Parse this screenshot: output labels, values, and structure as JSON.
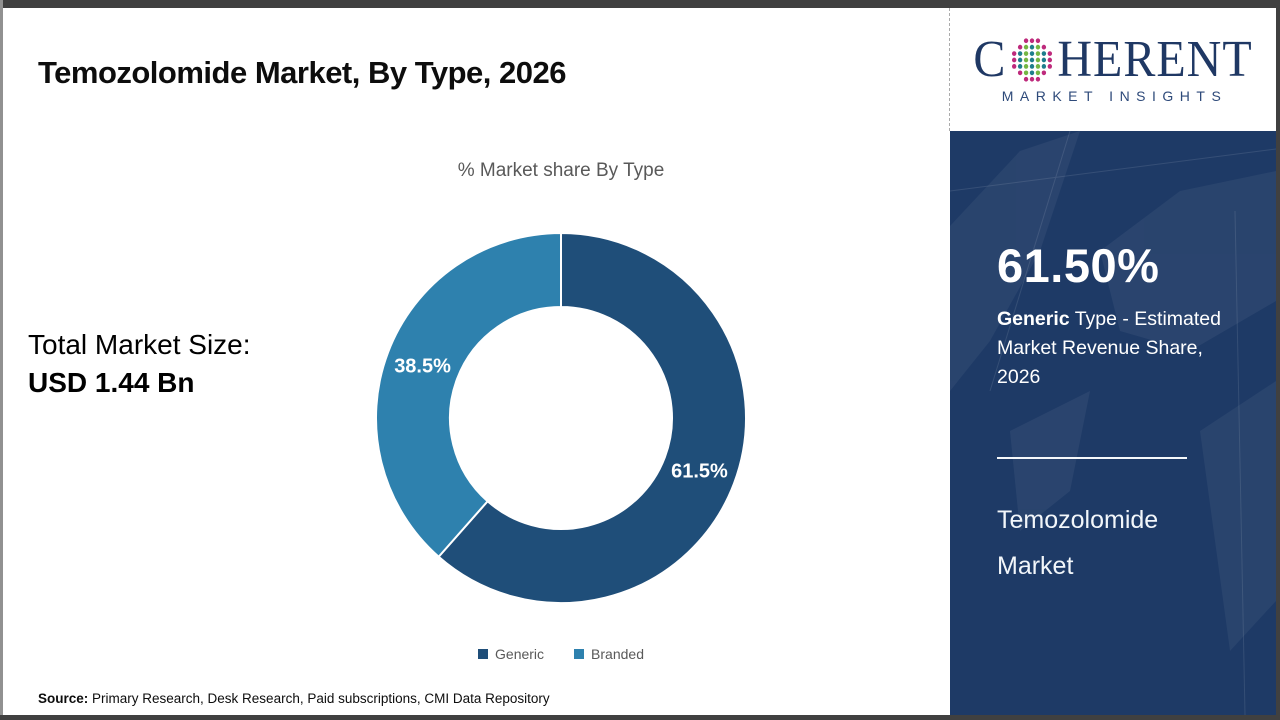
{
  "page": {
    "title": "Temozolomide Market, By Type, 2026",
    "source_label": "Source:",
    "source_text": " Primary Research, Desk Research, Paid subscriptions, CMI Data Repository"
  },
  "stats": {
    "label": "Total Market Size:",
    "value": "USD 1.44 Bn"
  },
  "chart_data": {
    "type": "pie",
    "subtype": "donut",
    "title": "% Market share By Type",
    "categories": [
      "Generic",
      "Branded"
    ],
    "values": [
      61.5,
      38.5
    ],
    "labels": [
      "61.5%",
      "38.5%"
    ],
    "colors": [
      "#1F4E79",
      "#2E81AE"
    ],
    "start_angle_deg": 0,
    "direction": "clockwise",
    "legend_position": "bottom",
    "inner_radius_ratio": 0.6,
    "slice_label_color": "#ffffff"
  },
  "sidebar": {
    "logo": {
      "word_start": "C",
      "word_end": "HERENT",
      "subtitle": "MARKET INSIGHTS",
      "globe_teal": "#1E7D8C",
      "globe_green": "#74B643",
      "globe_magenta": "#BE2A7C"
    },
    "stat": {
      "value": "61.50%",
      "desc_bold": "Generic",
      "desc_rest": " Type - Estimated Market Revenue Share, 2026"
    },
    "market_name": "Temozolomide Market"
  },
  "theme": {
    "panel_navy": "#1E3A66",
    "logo_navy": "#1F3864",
    "muted_gray": "#595959"
  }
}
